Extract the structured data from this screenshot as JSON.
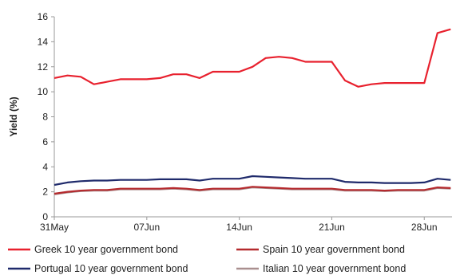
{
  "chart_data": {
    "type": "line",
    "title": "",
    "xlabel": "",
    "ylabel": "Yield (%)",
    "ylim": [
      0,
      16
    ],
    "yticks": [
      0,
      2,
      4,
      6,
      8,
      10,
      12,
      14,
      16
    ],
    "grid": false,
    "legend_position": "bottom",
    "x": [
      "31May",
      "01Jun",
      "02Jun",
      "03Jun",
      "04Jun",
      "05Jun",
      "06Jun",
      "07Jun",
      "08Jun",
      "09Jun",
      "10Jun",
      "11Jun",
      "12Jun",
      "13Jun",
      "14Jun",
      "15Jun",
      "16Jun",
      "17Jun",
      "18Jun",
      "19Jun",
      "20Jun",
      "21Jun",
      "22Jun",
      "23Jun",
      "24Jun",
      "25Jun",
      "26Jun",
      "27Jun",
      "28Jun",
      "29Jun",
      "30Jun"
    ],
    "x_tick_labels": [
      "31May",
      "07Jun",
      "14Jun",
      "21Jun",
      "28Jun"
    ],
    "series": [
      {
        "name": "Greek 10 year government bond",
        "color": "#e8212e",
        "values": [
          11.1,
          11.3,
          11.2,
          10.6,
          10.8,
          11.0,
          11.0,
          11.0,
          11.1,
          11.4,
          11.4,
          11.1,
          11.6,
          11.6,
          11.6,
          12.0,
          12.7,
          12.8,
          12.7,
          12.4,
          12.4,
          12.4,
          10.9,
          10.4,
          10.6,
          10.7,
          10.7,
          10.7,
          10.7,
          14.7,
          15.0
        ]
      },
      {
        "name": "Spain 10 year government bond",
        "color": "#b52a2e",
        "values": [
          1.85,
          2.0,
          2.1,
          2.15,
          2.15,
          2.25,
          2.25,
          2.25,
          2.25,
          2.3,
          2.25,
          2.15,
          2.25,
          2.25,
          2.25,
          2.4,
          2.35,
          2.3,
          2.25,
          2.25,
          2.25,
          2.25,
          2.15,
          2.15,
          2.15,
          2.1,
          2.15,
          2.15,
          2.15,
          2.35,
          2.3
        ]
      },
      {
        "name": "Portugal 10 year government bond",
        "color": "#1f2a6b",
        "values": [
          2.55,
          2.75,
          2.85,
          2.9,
          2.9,
          2.95,
          2.95,
          2.95,
          3.0,
          3.0,
          3.0,
          2.9,
          3.05,
          3.05,
          3.05,
          3.25,
          3.2,
          3.15,
          3.1,
          3.05,
          3.05,
          3.05,
          2.8,
          2.75,
          2.75,
          2.7,
          2.7,
          2.7,
          2.75,
          3.05,
          2.95
        ]
      },
      {
        "name": "Italian 10 year government bond",
        "color": "#a98f8f",
        "values": [
          1.8,
          1.95,
          2.05,
          2.1,
          2.1,
          2.2,
          2.2,
          2.2,
          2.2,
          2.25,
          2.2,
          2.1,
          2.2,
          2.2,
          2.2,
          2.35,
          2.3,
          2.25,
          2.2,
          2.2,
          2.2,
          2.2,
          2.1,
          2.1,
          2.1,
          2.05,
          2.1,
          2.1,
          2.1,
          2.3,
          2.25
        ]
      }
    ]
  }
}
